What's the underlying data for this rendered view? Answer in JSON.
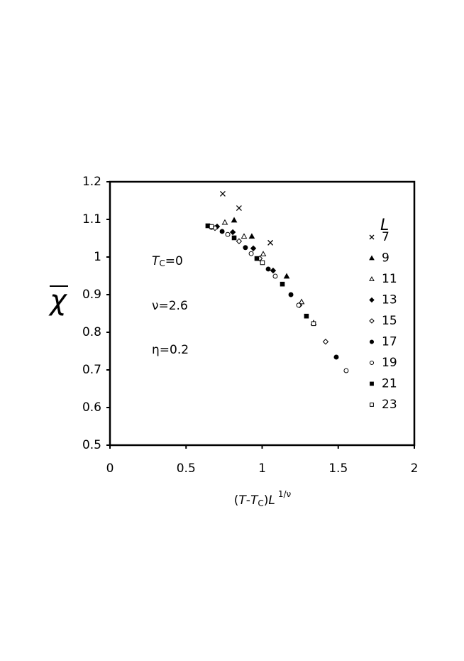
{
  "chart_data": {
    "type": "scatter",
    "xlabel": {
      "parts": [
        "(",
        "T",
        "-",
        "T",
        "C",
        ")",
        "L",
        "1/ν"
      ]
    },
    "ylabel": "χ",
    "legend_title": "L",
    "annotations": [
      {
        "parts": [
          "T",
          "C",
          "=0"
        ]
      },
      {
        "parts": [
          "ν=2.6"
        ]
      },
      {
        "parts": [
          "η=0.2"
        ]
      }
    ],
    "xlim": [
      0,
      2
    ],
    "xticks": [
      0,
      0.5,
      1,
      1.5,
      2
    ],
    "ylim": [
      0.5,
      1.2
    ],
    "yticks": [
      0.5,
      0.6,
      0.7,
      0.8,
      0.9,
      1,
      1.1,
      1.2
    ],
    "legend": "right",
    "series": [
      {
        "name": "7",
        "color": "#000000",
        "marker": "x",
        "x": [
          0.741,
          0.848,
          1.054
        ],
        "values": [
          1.168,
          1.13,
          1.038
        ]
      },
      {
        "name": "9",
        "color": "#000000",
        "marker": "triangle-filled",
        "x": [
          0.816,
          0.932,
          1.161
        ],
        "values": [
          1.098,
          1.055,
          0.949
        ]
      },
      {
        "name": "11",
        "color": "#000000",
        "marker": "triangle-open",
        "x": [
          0.755,
          0.881,
          1.007,
          1.259,
          1.338
        ],
        "values": [
          1.092,
          1.055,
          1.008,
          0.881,
          0.825
        ]
      },
      {
        "name": "13",
        "color": "#000000",
        "marker": "diamond-filled",
        "x": [
          0.704,
          0.807,
          0.942,
          1.072
        ],
        "values": [
          1.081,
          1.066,
          1.023,
          0.964
        ]
      },
      {
        "name": "15",
        "color": "#000000",
        "marker": "diamond-open",
        "x": [
          0.69,
          0.848,
          0.984,
          1.245,
          1.417
        ],
        "values": [
          1.077,
          1.042,
          0.996,
          0.872,
          0.775
        ]
      },
      {
        "name": "17",
        "color": "#000000",
        "marker": "circle-filled",
        "x": [
          0.737,
          0.89,
          1.04,
          1.189,
          1.487
        ],
        "values": [
          1.068,
          1.025,
          0.968,
          0.9,
          0.734
        ]
      },
      {
        "name": "19",
        "color": "#000000",
        "marker": "circle-open",
        "x": [
          0.667,
          0.774,
          0.928,
          1.086,
          1.24,
          1.552
        ],
        "values": [
          1.079,
          1.06,
          1.009,
          0.949,
          0.872,
          0.698
        ]
      },
      {
        "name": "21",
        "color": "#000000",
        "marker": "square-filled",
        "x": [
          0.643,
          0.816,
          0.965,
          1.133,
          1.291
        ],
        "values": [
          1.083,
          1.051,
          0.996,
          0.928,
          0.843
        ]
      },
      {
        "name": "23",
        "color": "#000000",
        "marker": "square-open",
        "x": [
          0.667,
          1.002,
          1.338
        ],
        "values": [
          1.081,
          0.985,
          0.823
        ]
      }
    ]
  }
}
